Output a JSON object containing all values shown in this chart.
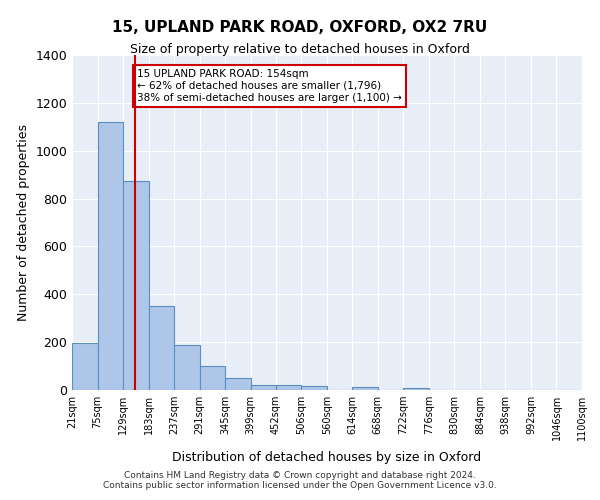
{
  "title": "15, UPLAND PARK ROAD, OXFORD, OX2 7RU",
  "subtitle": "Size of property relative to detached houses in Oxford",
  "xlabel": "Distribution of detached houses by size in Oxford",
  "ylabel": "Number of detached properties",
  "bin_edges": [
    21,
    75,
    129,
    183,
    237,
    291,
    345,
    399,
    452,
    506,
    560,
    614,
    668,
    722,
    776,
    830,
    884,
    938,
    992,
    1046,
    1100
  ],
  "bar_heights": [
    195,
    1120,
    875,
    350,
    190,
    100,
    52,
    22,
    22,
    15,
    0,
    12,
    0,
    10,
    0,
    0,
    0,
    0,
    0,
    0
  ],
  "bar_color": "#aec6e8",
  "bar_edge_color": "#5a8fc2",
  "bar_edge_width": 0.8,
  "property_line_x": 154,
  "property_line_color": "#cc0000",
  "annotation_text": "15 UPLAND PARK ROAD: 154sqm\n← 62% of detached houses are smaller (1,796)\n38% of semi-detached houses are larger (1,100) →",
  "annotation_box_color": "#cc0000",
  "ylim": [
    0,
    1400
  ],
  "yticks": [
    0,
    200,
    400,
    600,
    800,
    1000,
    1200,
    1400
  ],
  "background_color": "#e8eef7",
  "grid_color": "#ffffff",
  "footer_line1": "Contains HM Land Registry data © Crown copyright and database right 2024.",
  "footer_line2": "Contains public sector information licensed under the Open Government Licence v3.0."
}
